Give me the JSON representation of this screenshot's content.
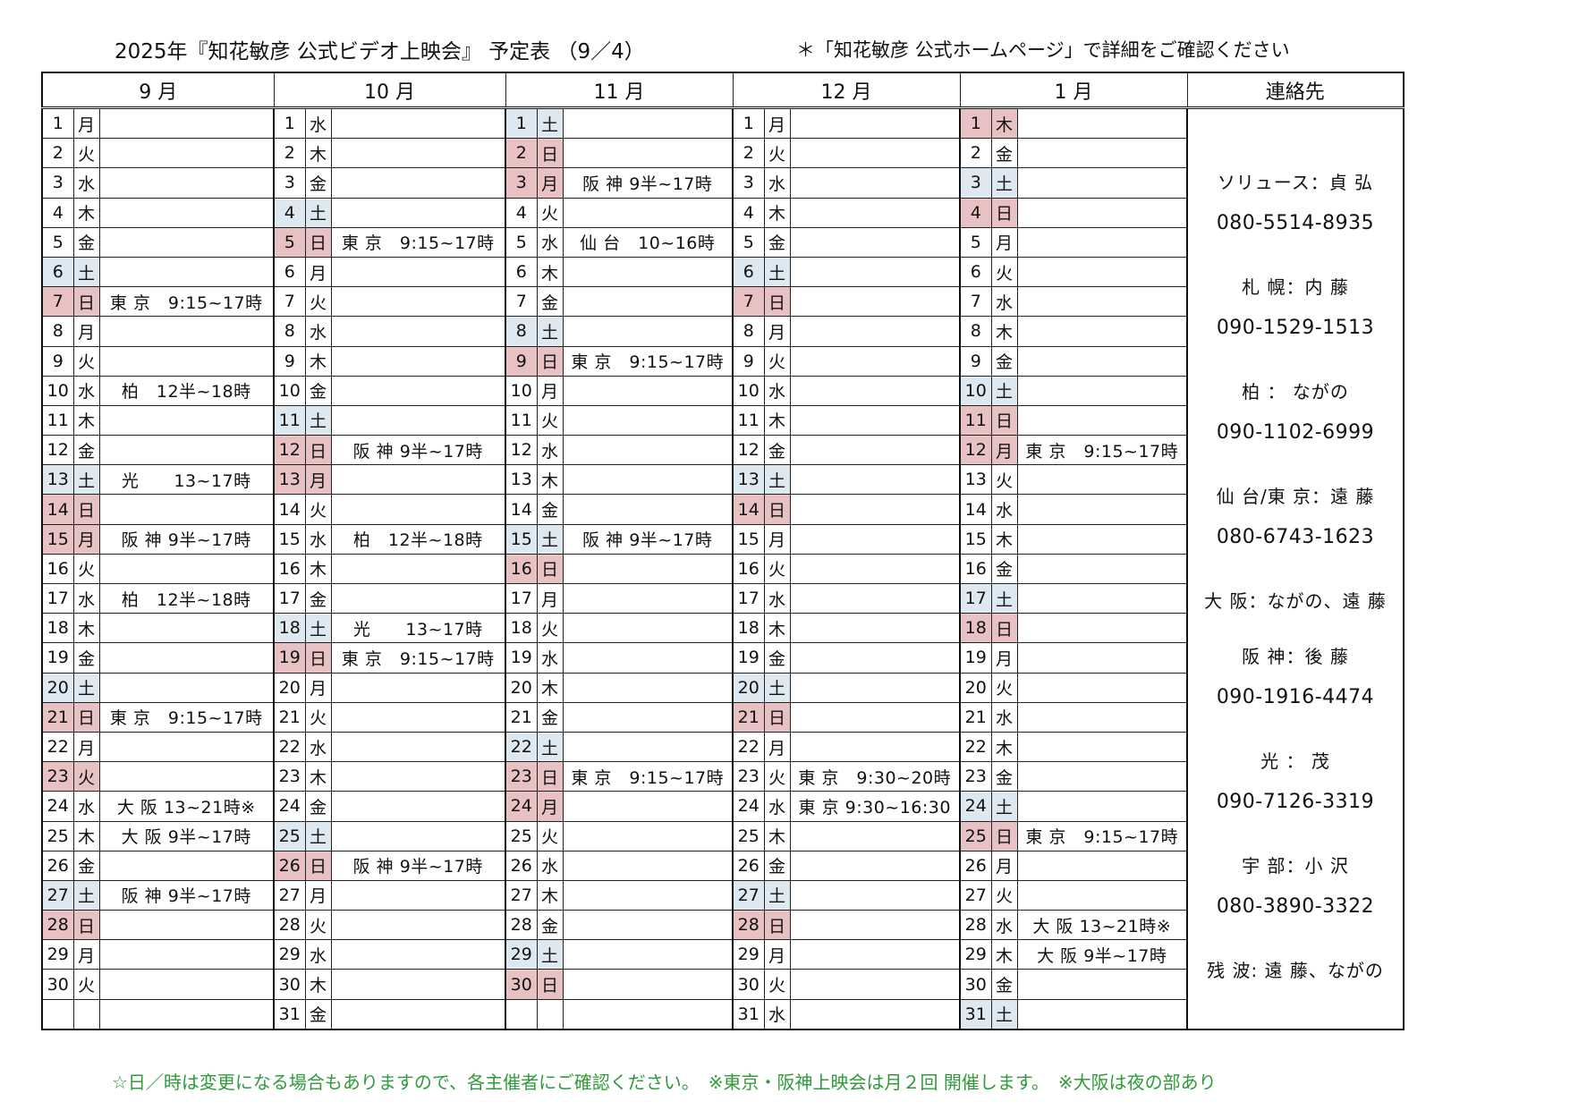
{
  "header": {
    "title": "2025年『知花敏彦 公式ビデオ上映会』 予定表 （9／4）",
    "note": "＊「知花敏彦 公式ホームページ」で詳細をご確認ください"
  },
  "columns": [
    "9 月",
    "10 月",
    "11 月",
    "12 月",
    "1 月"
  ],
  "contact_header": "連絡先",
  "months": [
    {
      "days": [
        {
          "d": "1",
          "w": "月",
          "t": "",
          "e": ""
        },
        {
          "d": "2",
          "w": "火",
          "t": "",
          "e": ""
        },
        {
          "d": "3",
          "w": "水",
          "t": "",
          "e": ""
        },
        {
          "d": "4",
          "w": "木",
          "t": "",
          "e": ""
        },
        {
          "d": "5",
          "w": "金",
          "t": "",
          "e": ""
        },
        {
          "d": "6",
          "w": "土",
          "t": "sat",
          "e": ""
        },
        {
          "d": "7",
          "w": "日",
          "t": "sun",
          "e": "東 京　9:15~17時"
        },
        {
          "d": "8",
          "w": "月",
          "t": "",
          "e": ""
        },
        {
          "d": "9",
          "w": "火",
          "t": "",
          "e": ""
        },
        {
          "d": "10",
          "w": "水",
          "t": "",
          "e": "柏　12半~18時"
        },
        {
          "d": "11",
          "w": "木",
          "t": "",
          "e": ""
        },
        {
          "d": "12",
          "w": "金",
          "t": "",
          "e": ""
        },
        {
          "d": "13",
          "w": "土",
          "t": "sat",
          "e": "光　　13~17時"
        },
        {
          "d": "14",
          "w": "日",
          "t": "sun",
          "e": ""
        },
        {
          "d": "15",
          "w": "月",
          "t": "sun",
          "e": "阪 神 9半~17時"
        },
        {
          "d": "16",
          "w": "火",
          "t": "",
          "e": ""
        },
        {
          "d": "17",
          "w": "水",
          "t": "",
          "e": "柏　12半~18時"
        },
        {
          "d": "18",
          "w": "木",
          "t": "",
          "e": ""
        },
        {
          "d": "19",
          "w": "金",
          "t": "",
          "e": ""
        },
        {
          "d": "20",
          "w": "土",
          "t": "sat",
          "e": ""
        },
        {
          "d": "21",
          "w": "日",
          "t": "sun",
          "e": "東 京　9:15~17時"
        },
        {
          "d": "22",
          "w": "月",
          "t": "",
          "e": ""
        },
        {
          "d": "23",
          "w": "火",
          "t": "sun",
          "e": ""
        },
        {
          "d": "24",
          "w": "水",
          "t": "",
          "e": "大 阪 13~21時※"
        },
        {
          "d": "25",
          "w": "木",
          "t": "",
          "e": "大 阪 9半~17時"
        },
        {
          "d": "26",
          "w": "金",
          "t": "",
          "e": ""
        },
        {
          "d": "27",
          "w": "土",
          "t": "sat",
          "e": "阪 神 9半~17時"
        },
        {
          "d": "28",
          "w": "日",
          "t": "sun",
          "e": ""
        },
        {
          "d": "29",
          "w": "月",
          "t": "",
          "e": ""
        },
        {
          "d": "30",
          "w": "火",
          "t": "",
          "e": ""
        },
        {
          "d": "",
          "w": "",
          "t": "",
          "e": ""
        }
      ]
    },
    {
      "days": [
        {
          "d": "1",
          "w": "水",
          "t": "",
          "e": ""
        },
        {
          "d": "2",
          "w": "木",
          "t": "",
          "e": ""
        },
        {
          "d": "3",
          "w": "金",
          "t": "",
          "e": ""
        },
        {
          "d": "4",
          "w": "土",
          "t": "sat",
          "e": ""
        },
        {
          "d": "5",
          "w": "日",
          "t": "sun",
          "e": "東 京　9:15~17時"
        },
        {
          "d": "6",
          "w": "月",
          "t": "",
          "e": ""
        },
        {
          "d": "7",
          "w": "火",
          "t": "",
          "e": ""
        },
        {
          "d": "8",
          "w": "水",
          "t": "",
          "e": ""
        },
        {
          "d": "9",
          "w": "木",
          "t": "",
          "e": ""
        },
        {
          "d": "10",
          "w": "金",
          "t": "",
          "e": ""
        },
        {
          "d": "11",
          "w": "土",
          "t": "sat",
          "e": ""
        },
        {
          "d": "12",
          "w": "日",
          "t": "sun",
          "e": "阪 神 9半~17時"
        },
        {
          "d": "13",
          "w": "月",
          "t": "sun",
          "e": ""
        },
        {
          "d": "14",
          "w": "火",
          "t": "",
          "e": ""
        },
        {
          "d": "15",
          "w": "水",
          "t": "",
          "e": "柏　12半~18時"
        },
        {
          "d": "16",
          "w": "木",
          "t": "",
          "e": ""
        },
        {
          "d": "17",
          "w": "金",
          "t": "",
          "e": ""
        },
        {
          "d": "18",
          "w": "土",
          "t": "sat",
          "e": "光　　13~17時"
        },
        {
          "d": "19",
          "w": "日",
          "t": "sun",
          "e": "東 京　9:15~17時"
        },
        {
          "d": "20",
          "w": "月",
          "t": "",
          "e": ""
        },
        {
          "d": "21",
          "w": "火",
          "t": "",
          "e": ""
        },
        {
          "d": "22",
          "w": "水",
          "t": "",
          "e": ""
        },
        {
          "d": "23",
          "w": "木",
          "t": "",
          "e": ""
        },
        {
          "d": "24",
          "w": "金",
          "t": "",
          "e": ""
        },
        {
          "d": "25",
          "w": "土",
          "t": "sat",
          "e": ""
        },
        {
          "d": "26",
          "w": "日",
          "t": "sun",
          "e": "阪 神 9半~17時"
        },
        {
          "d": "27",
          "w": "月",
          "t": "",
          "e": ""
        },
        {
          "d": "28",
          "w": "火",
          "t": "",
          "e": ""
        },
        {
          "d": "29",
          "w": "水",
          "t": "",
          "e": ""
        },
        {
          "d": "30",
          "w": "木",
          "t": "",
          "e": ""
        },
        {
          "d": "31",
          "w": "金",
          "t": "",
          "e": ""
        }
      ]
    },
    {
      "days": [
        {
          "d": "1",
          "w": "土",
          "t": "sat",
          "e": ""
        },
        {
          "d": "2",
          "w": "日",
          "t": "sun",
          "e": ""
        },
        {
          "d": "3",
          "w": "月",
          "t": "sun",
          "e": "阪 神 9半~17時"
        },
        {
          "d": "4",
          "w": "火",
          "t": "",
          "e": ""
        },
        {
          "d": "5",
          "w": "水",
          "t": "",
          "e": "仙 台　10~16時"
        },
        {
          "d": "6",
          "w": "木",
          "t": "",
          "e": ""
        },
        {
          "d": "7",
          "w": "金",
          "t": "",
          "e": ""
        },
        {
          "d": "8",
          "w": "土",
          "t": "sat",
          "e": ""
        },
        {
          "d": "9",
          "w": "日",
          "t": "sun",
          "e": "東 京　9:15~17時"
        },
        {
          "d": "10",
          "w": "月",
          "t": "",
          "e": ""
        },
        {
          "d": "11",
          "w": "火",
          "t": "",
          "e": ""
        },
        {
          "d": "12",
          "w": "水",
          "t": "",
          "e": ""
        },
        {
          "d": "13",
          "w": "木",
          "t": "",
          "e": ""
        },
        {
          "d": "14",
          "w": "金",
          "t": "",
          "e": ""
        },
        {
          "d": "15",
          "w": "土",
          "t": "sat",
          "e": "阪 神 9半~17時"
        },
        {
          "d": "16",
          "w": "日",
          "t": "sun",
          "e": ""
        },
        {
          "d": "17",
          "w": "月",
          "t": "",
          "e": ""
        },
        {
          "d": "18",
          "w": "火",
          "t": "",
          "e": ""
        },
        {
          "d": "19",
          "w": "水",
          "t": "",
          "e": ""
        },
        {
          "d": "20",
          "w": "木",
          "t": "",
          "e": ""
        },
        {
          "d": "21",
          "w": "金",
          "t": "",
          "e": ""
        },
        {
          "d": "22",
          "w": "土",
          "t": "sat",
          "e": ""
        },
        {
          "d": "23",
          "w": "日",
          "t": "sun",
          "e": "東 京　9:15~17時"
        },
        {
          "d": "24",
          "w": "月",
          "t": "sun",
          "e": ""
        },
        {
          "d": "25",
          "w": "火",
          "t": "",
          "e": ""
        },
        {
          "d": "26",
          "w": "水",
          "t": "",
          "e": ""
        },
        {
          "d": "27",
          "w": "木",
          "t": "",
          "e": ""
        },
        {
          "d": "28",
          "w": "金",
          "t": "",
          "e": ""
        },
        {
          "d": "29",
          "w": "土",
          "t": "sat",
          "e": ""
        },
        {
          "d": "30",
          "w": "日",
          "t": "sun",
          "e": ""
        },
        {
          "d": "",
          "w": "",
          "t": "",
          "e": ""
        }
      ]
    },
    {
      "days": [
        {
          "d": "1",
          "w": "月",
          "t": "",
          "e": ""
        },
        {
          "d": "2",
          "w": "火",
          "t": "",
          "e": ""
        },
        {
          "d": "3",
          "w": "水",
          "t": "",
          "e": ""
        },
        {
          "d": "4",
          "w": "木",
          "t": "",
          "e": ""
        },
        {
          "d": "5",
          "w": "金",
          "t": "",
          "e": ""
        },
        {
          "d": "6",
          "w": "土",
          "t": "sat",
          "e": ""
        },
        {
          "d": "7",
          "w": "日",
          "t": "sun",
          "e": ""
        },
        {
          "d": "8",
          "w": "月",
          "t": "",
          "e": ""
        },
        {
          "d": "9",
          "w": "火",
          "t": "",
          "e": ""
        },
        {
          "d": "10",
          "w": "水",
          "t": "",
          "e": ""
        },
        {
          "d": "11",
          "w": "木",
          "t": "",
          "e": ""
        },
        {
          "d": "12",
          "w": "金",
          "t": "",
          "e": ""
        },
        {
          "d": "13",
          "w": "土",
          "t": "sat",
          "e": ""
        },
        {
          "d": "14",
          "w": "日",
          "t": "sun",
          "e": ""
        },
        {
          "d": "15",
          "w": "月",
          "t": "",
          "e": ""
        },
        {
          "d": "16",
          "w": "火",
          "t": "",
          "e": ""
        },
        {
          "d": "17",
          "w": "水",
          "t": "",
          "e": ""
        },
        {
          "d": "18",
          "w": "木",
          "t": "",
          "e": ""
        },
        {
          "d": "19",
          "w": "金",
          "t": "",
          "e": ""
        },
        {
          "d": "20",
          "w": "土",
          "t": "sat",
          "e": ""
        },
        {
          "d": "21",
          "w": "日",
          "t": "sun",
          "e": ""
        },
        {
          "d": "22",
          "w": "月",
          "t": "",
          "e": ""
        },
        {
          "d": "23",
          "w": "火",
          "t": "",
          "e": "東 京　9:30~20時"
        },
        {
          "d": "24",
          "w": "水",
          "t": "",
          "e": "東 京 9:30~16:30"
        },
        {
          "d": "25",
          "w": "木",
          "t": "",
          "e": ""
        },
        {
          "d": "26",
          "w": "金",
          "t": "",
          "e": ""
        },
        {
          "d": "27",
          "w": "土",
          "t": "sat",
          "e": ""
        },
        {
          "d": "28",
          "w": "日",
          "t": "sun",
          "e": ""
        },
        {
          "d": "29",
          "w": "月",
          "t": "",
          "e": ""
        },
        {
          "d": "30",
          "w": "火",
          "t": "",
          "e": ""
        },
        {
          "d": "31",
          "w": "水",
          "t": "",
          "e": ""
        }
      ]
    },
    {
      "days": [
        {
          "d": "1",
          "w": "木",
          "t": "sun",
          "e": ""
        },
        {
          "d": "2",
          "w": "金",
          "t": "",
          "e": ""
        },
        {
          "d": "3",
          "w": "土",
          "t": "sat",
          "e": ""
        },
        {
          "d": "4",
          "w": "日",
          "t": "sun",
          "e": ""
        },
        {
          "d": "5",
          "w": "月",
          "t": "",
          "e": ""
        },
        {
          "d": "6",
          "w": "火",
          "t": "",
          "e": ""
        },
        {
          "d": "7",
          "w": "水",
          "t": "",
          "e": ""
        },
        {
          "d": "8",
          "w": "木",
          "t": "",
          "e": ""
        },
        {
          "d": "9",
          "w": "金",
          "t": "",
          "e": ""
        },
        {
          "d": "10",
          "w": "土",
          "t": "sat",
          "e": ""
        },
        {
          "d": "11",
          "w": "日",
          "t": "sun",
          "e": ""
        },
        {
          "d": "12",
          "w": "月",
          "t": "sun",
          "e": "東 京　9:15~17時"
        },
        {
          "d": "13",
          "w": "火",
          "t": "",
          "e": ""
        },
        {
          "d": "14",
          "w": "水",
          "t": "",
          "e": ""
        },
        {
          "d": "15",
          "w": "木",
          "t": "",
          "e": ""
        },
        {
          "d": "16",
          "w": "金",
          "t": "",
          "e": ""
        },
        {
          "d": "17",
          "w": "土",
          "t": "sat",
          "e": ""
        },
        {
          "d": "18",
          "w": "日",
          "t": "sun",
          "e": ""
        },
        {
          "d": "19",
          "w": "月",
          "t": "",
          "e": ""
        },
        {
          "d": "20",
          "w": "火",
          "t": "",
          "e": ""
        },
        {
          "d": "21",
          "w": "水",
          "t": "",
          "e": ""
        },
        {
          "d": "22",
          "w": "木",
          "t": "",
          "e": ""
        },
        {
          "d": "23",
          "w": "金",
          "t": "",
          "e": ""
        },
        {
          "d": "24",
          "w": "土",
          "t": "sat",
          "e": ""
        },
        {
          "d": "25",
          "w": "日",
          "t": "sun",
          "e": "東 京　9:15~17時"
        },
        {
          "d": "26",
          "w": "月",
          "t": "",
          "e": ""
        },
        {
          "d": "27",
          "w": "火",
          "t": "",
          "e": ""
        },
        {
          "d": "28",
          "w": "水",
          "t": "",
          "e": "大 阪 13~21時※"
        },
        {
          "d": "29",
          "w": "木",
          "t": "",
          "e": "大 阪 9半~17時"
        },
        {
          "d": "30",
          "w": "金",
          "t": "",
          "e": ""
        },
        {
          "d": "31",
          "w": "土",
          "t": "sat",
          "e": ""
        }
      ]
    }
  ],
  "contacts": [
    {
      "name": "ソリュース：貞 弘",
      "phone": "080-5514-8935"
    },
    {
      "name": "札 幌：内 藤",
      "phone": "090-1529-1513"
    },
    {
      "name": "柏 ： ながの",
      "phone": "090-1102-6999"
    },
    {
      "name": "仙 台/東 京：遠 藤",
      "phone": "080-6743-1623"
    },
    {
      "name": "大 阪：ながの、遠 藤",
      "phone": ""
    },
    {
      "name": "阪 神：後 藤",
      "phone": "090-1916-4474"
    },
    {
      "name": "光 ： 茂",
      "phone": "090-7126-3319"
    },
    {
      "name": "宇 部：小 沢",
      "phone": "080-3890-3322"
    },
    {
      "name": "残 波: 遠 藤、ながの",
      "phone": ""
    }
  ],
  "footer": "☆日／時は変更になる場合もありますので、各主催者にご確認ください。　※東京・阪神上映会は月２回 開催します。　※大阪は夜の部あり",
  "colors": {
    "saturday": "#dde8f1",
    "sunday_holiday": "#e8c2c2",
    "footer_text": "#2f9a3a"
  }
}
